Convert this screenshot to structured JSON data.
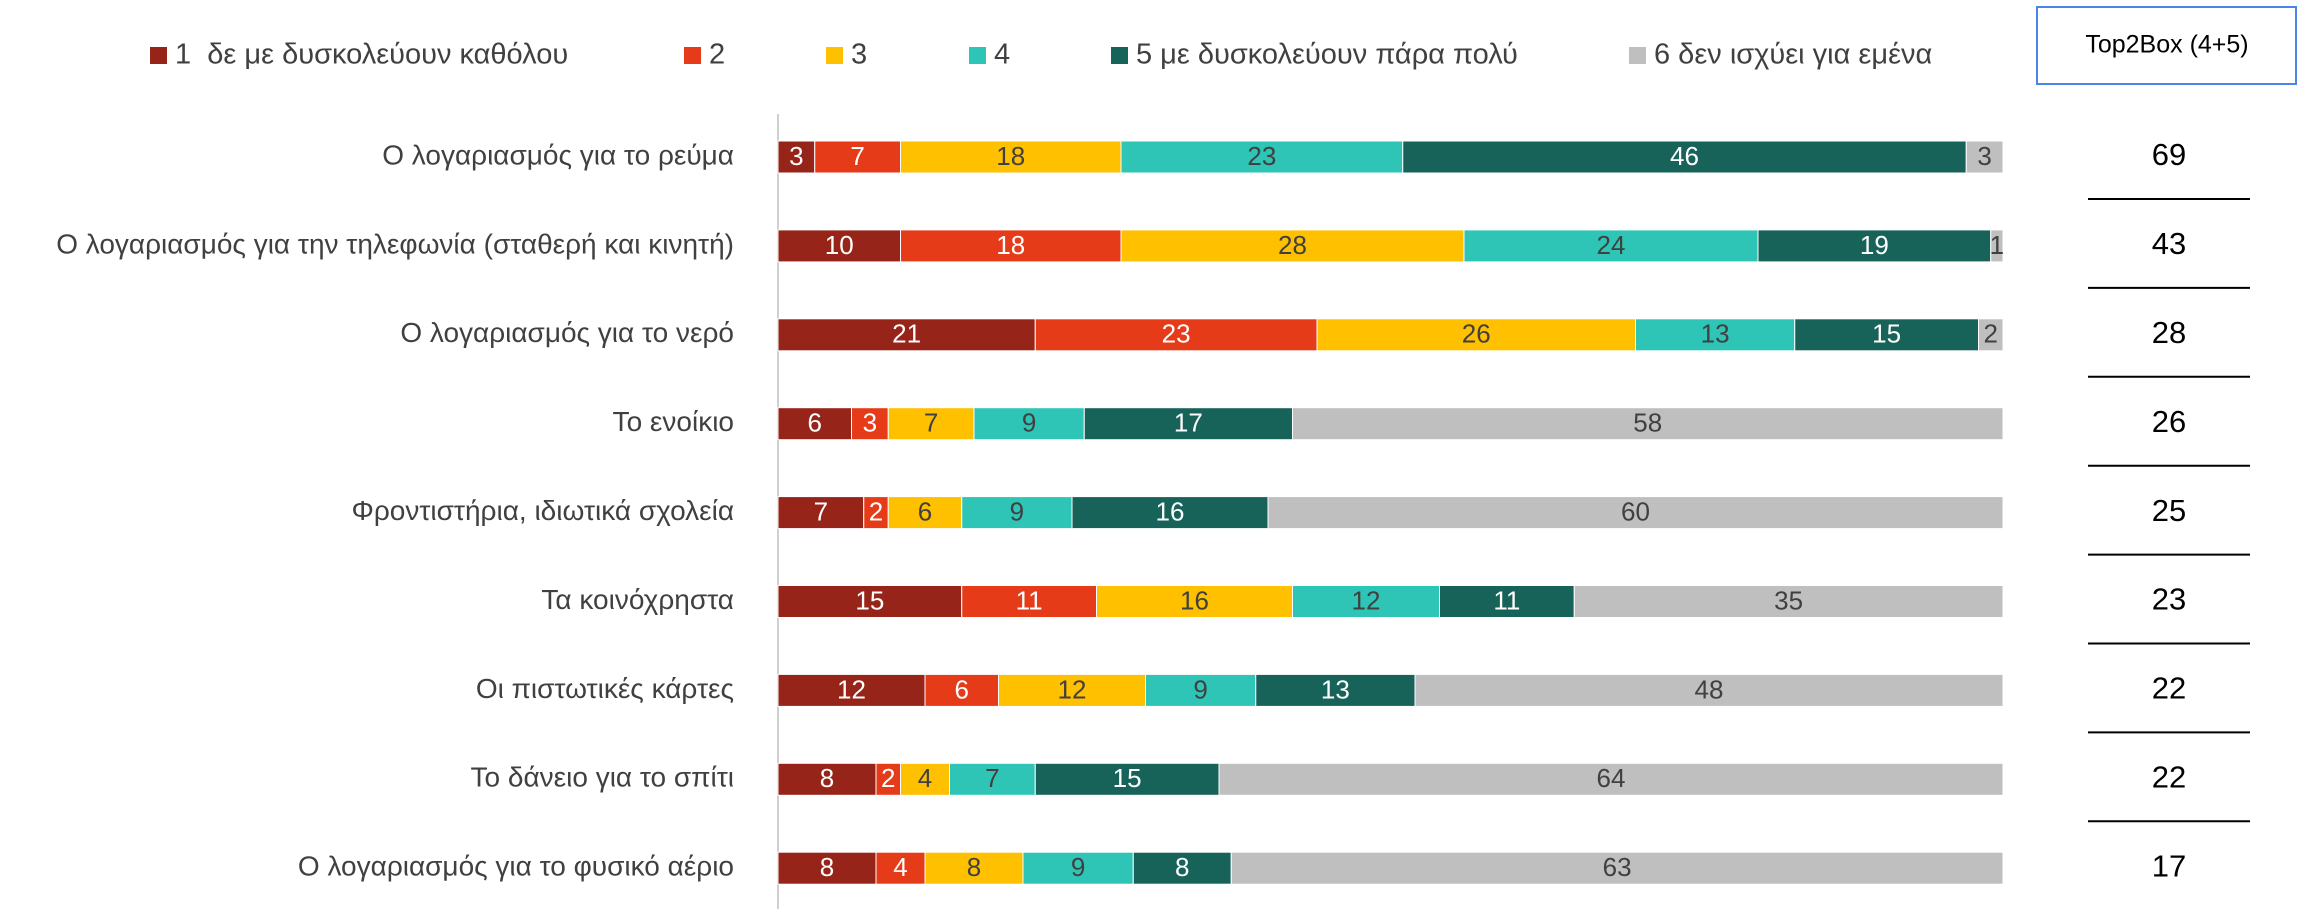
{
  "chart_data": {
    "type": "bar",
    "orientation": "horizontal",
    "stacked": true,
    "categories": [
      "Ο λογαριασμός για το ρεύμα",
      "Ο λογαριασμός για την τηλεφωνία (σταθερή και κινητή)",
      "Ο λογαριασμός για το νερό",
      "Το ενοίκιο",
      "Φροντιστήρια, ιδιωτικά σχολεία",
      "Τα κοινόχρηστα",
      "Οι πιστωτικές κάρτες",
      "Το δάνειο για το σπίτι",
      "Ο λογαριασμός για το φυσικό αέριο"
    ],
    "series": [
      {
        "name": "1  δε με δυσκολεύουν καθόλου",
        "color": "#962418",
        "values": [
          3,
          10,
          21,
          6,
          7,
          15,
          12,
          8,
          8
        ]
      },
      {
        "name": "2",
        "color": "#e63b19",
        "values": [
          7,
          18,
          23,
          3,
          2,
          11,
          6,
          2,
          4
        ]
      },
      {
        "name": "3",
        "color": "#ffc000",
        "values": [
          18,
          28,
          26,
          7,
          6,
          16,
          12,
          4,
          8
        ]
      },
      {
        "name": "4",
        "color": "#2ec4b6",
        "values": [
          23,
          24,
          13,
          9,
          9,
          12,
          9,
          7,
          9
        ]
      },
      {
        "name": "5 με δυσκολεύουν πάρα πολύ",
        "color": "#17635a",
        "values": [
          46,
          19,
          15,
          17,
          16,
          11,
          13,
          15,
          8
        ]
      },
      {
        "name": "6 δεν ισχύει για εμένα",
        "color": "#bfbfbf",
        "values": [
          3,
          1,
          2,
          58,
          60,
          35,
          48,
          64,
          63
        ]
      }
    ],
    "xlim": [
      0,
      100
    ],
    "top2box": {
      "title": "Top2Box (4+5)",
      "values": [
        69,
        43,
        28,
        26,
        25,
        23,
        22,
        22,
        17
      ]
    }
  }
}
